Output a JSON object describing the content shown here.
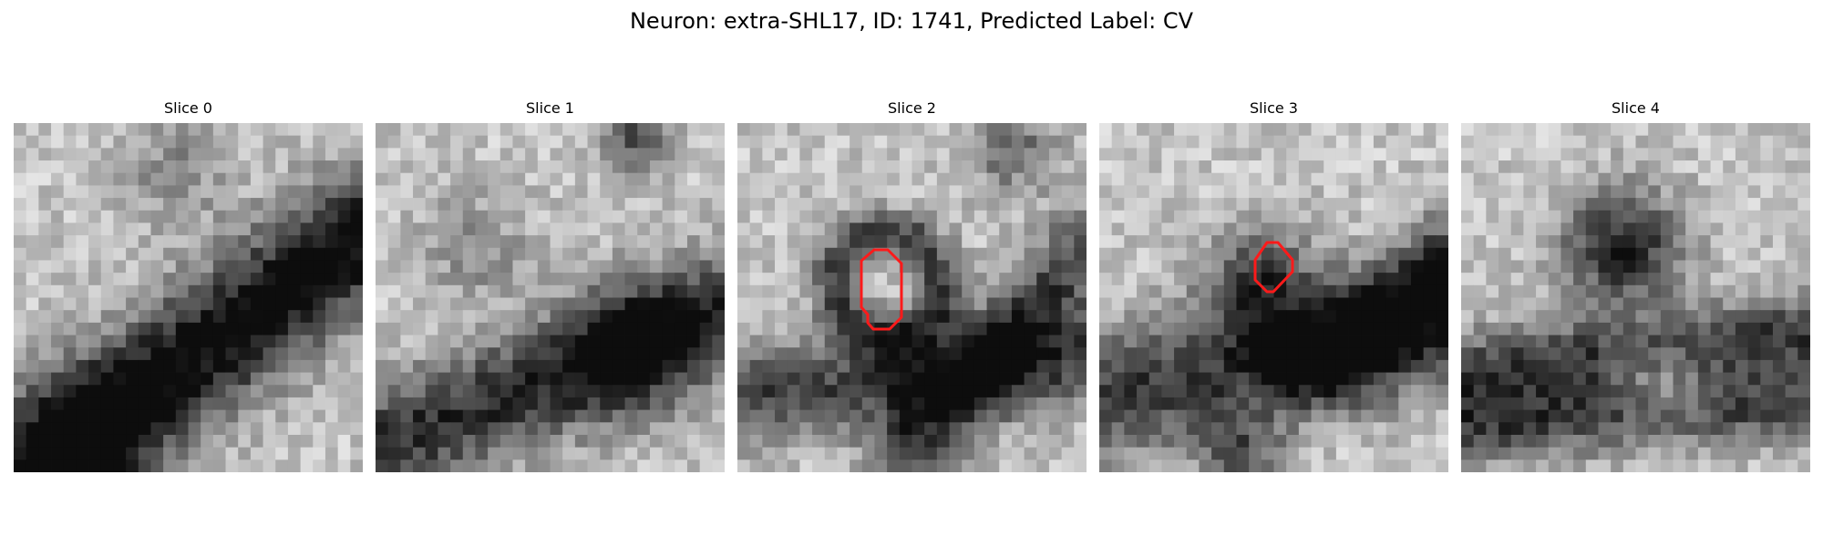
{
  "figure": {
    "title": "Neuron: extra-SHL17, ID: 1741, Predicted Label: CV"
  },
  "slices": [
    {
      "label": "Slice 0",
      "has_outline": false
    },
    {
      "label": "Slice 1",
      "has_outline": false
    },
    {
      "label": "Slice 2",
      "has_outline": true
    },
    {
      "label": "Slice 3",
      "has_outline": true
    },
    {
      "label": "Slice 4",
      "has_outline": false
    }
  ],
  "colors": {
    "outline": "#ff1a1a",
    "background": "#ffffff"
  }
}
